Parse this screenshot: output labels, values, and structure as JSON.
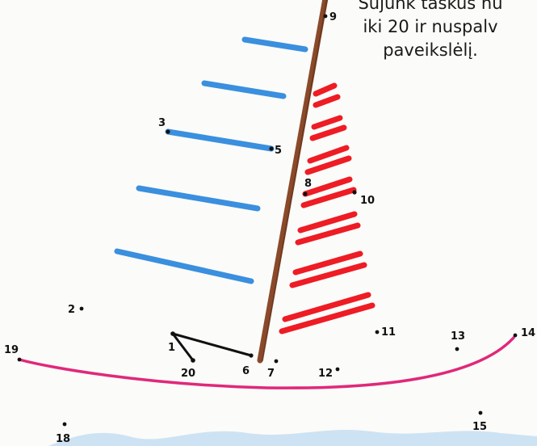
{
  "instruction": {
    "line1": "Sujunk taškus nu",
    "line2": "iki 20 ir nuspalv",
    "line3": "paveikslėlį."
  },
  "dots": [
    {
      "n": "1",
      "label": "1"
    },
    {
      "n": "2",
      "label": "2"
    },
    {
      "n": "3",
      "label": "3"
    },
    {
      "n": "5",
      "label": "5"
    },
    {
      "n": "6",
      "label": "6"
    },
    {
      "n": "7",
      "label": "7"
    },
    {
      "n": "8",
      "label": "8"
    },
    {
      "n": "9",
      "label": "9"
    },
    {
      "n": "10",
      "label": "10"
    },
    {
      "n": "11",
      "label": "11"
    },
    {
      "n": "12",
      "label": "12"
    },
    {
      "n": "13",
      "label": "13"
    },
    {
      "n": "14",
      "label": "14"
    },
    {
      "n": "15",
      "label": "15"
    },
    {
      "n": "18",
      "label": "18"
    },
    {
      "n": "19",
      "label": "19"
    },
    {
      "n": "20",
      "label": "20"
    }
  ],
  "colors": {
    "mast": "#8a4a2a",
    "blue_stripes": "#3a8fde",
    "red_stripes": "#ee1c24",
    "hull_curve": "#e0287a",
    "connector_lines": "#111111",
    "water": "#cde3f4"
  }
}
